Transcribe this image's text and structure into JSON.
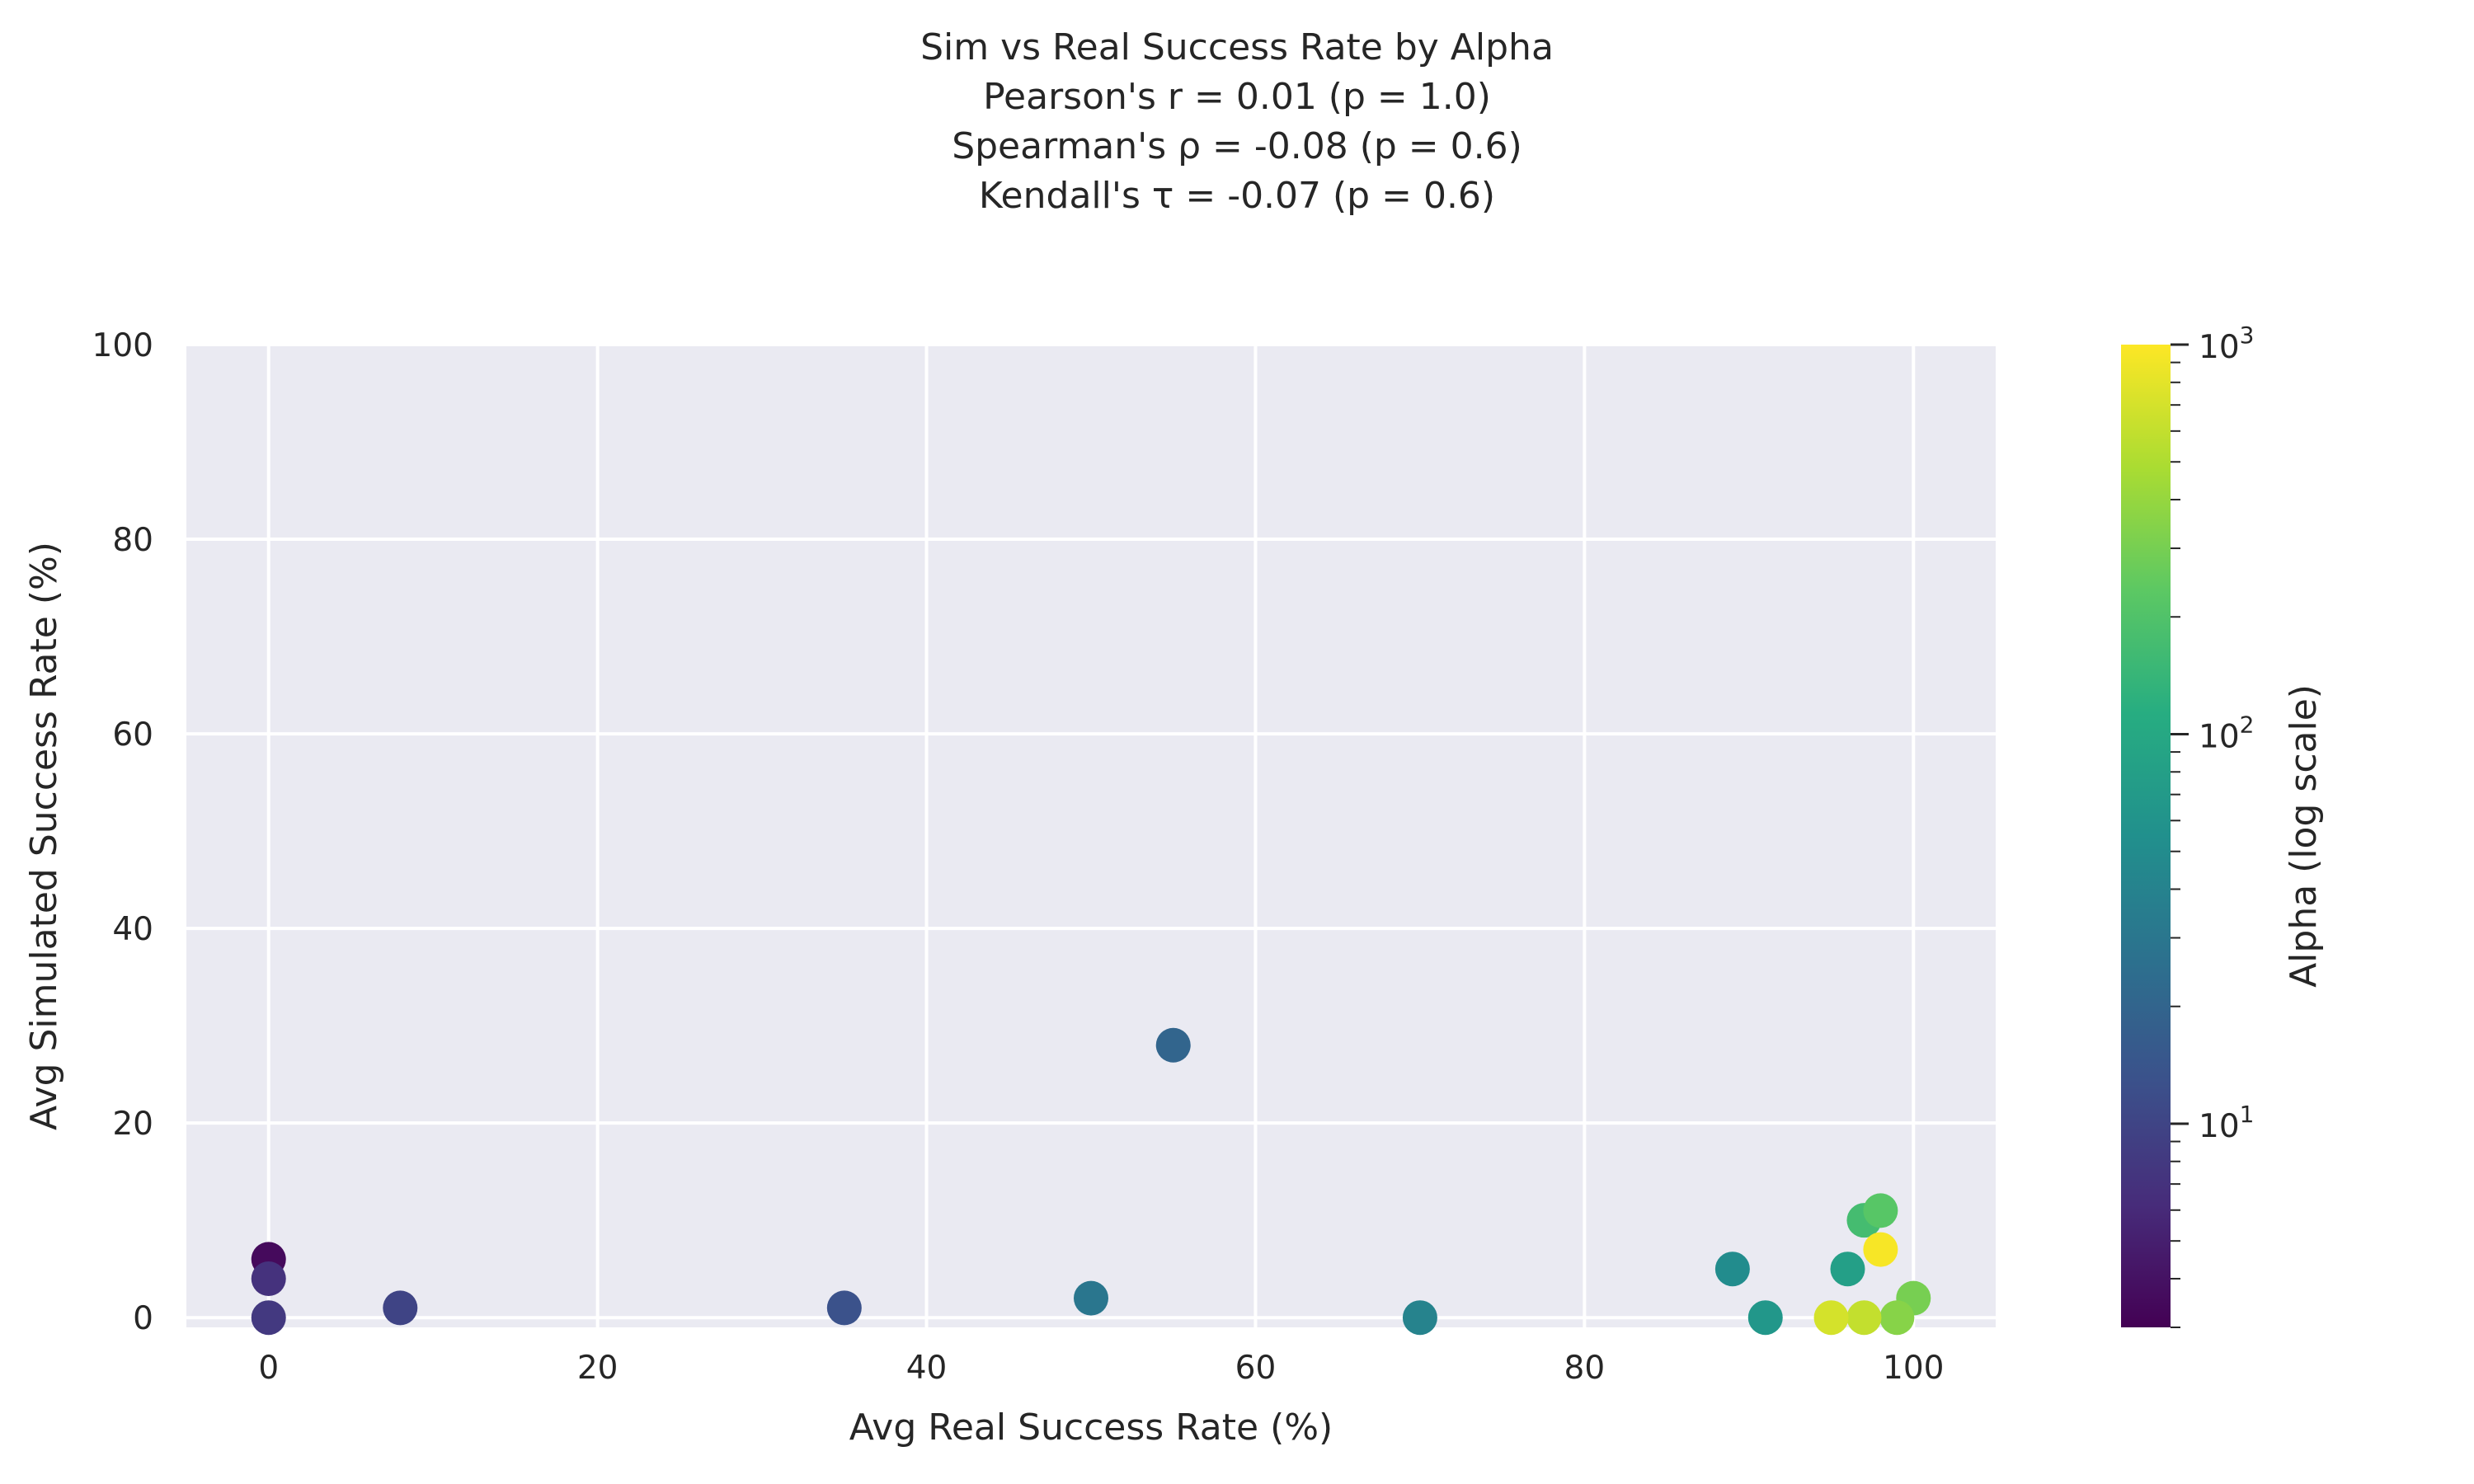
{
  "chart_data": {
    "type": "scatter",
    "title_lines": [
      "Sim vs Real Success Rate by Alpha",
      "Pearson's  r  =   0.01 (p =  1.0)",
      "Spearman's ρ =  -0.08 (p =  0.6)",
      "Kendall's  τ =  -0.07 (p =  0.6)"
    ],
    "xlabel": "Avg Real Success Rate (%)",
    "ylabel": "Avg Simulated Success Rate (%)",
    "xlim": [
      -5,
      105
    ],
    "ylim": [
      -1,
      100
    ],
    "xticks": [
      0,
      20,
      40,
      60,
      80,
      100
    ],
    "yticks": [
      0,
      20,
      40,
      60,
      80,
      100
    ],
    "grid": true,
    "colormap": "viridis",
    "colorbar": {
      "label": "Alpha (log scale)",
      "scale": "log",
      "range": [
        3,
        1000
      ],
      "major_ticks": [
        10,
        100,
        1000
      ],
      "major_tick_labels": [
        {
          "base": "10",
          "exp": "1"
        },
        {
          "base": "10",
          "exp": "2"
        },
        {
          "base": "10",
          "exp": "3"
        }
      ]
    },
    "points": [
      {
        "x": 0,
        "y": 6,
        "alpha": 3.5
      },
      {
        "x": 0,
        "y": 4,
        "alpha": 7
      },
      {
        "x": 0,
        "y": 0,
        "alpha": 8
      },
      {
        "x": 8,
        "y": 1,
        "alpha": 10
      },
      {
        "x": 35,
        "y": 1,
        "alpha": 13
      },
      {
        "x": 55,
        "y": 28,
        "alpha": 20
      },
      {
        "x": 50,
        "y": 2,
        "alpha": 30
      },
      {
        "x": 70,
        "y": 0,
        "alpha": 40
      },
      {
        "x": 89,
        "y": 5,
        "alpha": 50
      },
      {
        "x": 91,
        "y": 0,
        "alpha": 65
      },
      {
        "x": 96,
        "y": 5,
        "alpha": 80
      },
      {
        "x": 97,
        "y": 10,
        "alpha": 170
      },
      {
        "x": 98,
        "y": 11,
        "alpha": 220
      },
      {
        "x": 100,
        "y": 2,
        "alpha": 300
      },
      {
        "x": 99,
        "y": 0,
        "alpha": 350
      },
      {
        "x": 97,
        "y": 0,
        "alpha": 600
      },
      {
        "x": 95,
        "y": 0,
        "alpha": 700
      },
      {
        "x": 98,
        "y": 7,
        "alpha": 950
      }
    ]
  }
}
